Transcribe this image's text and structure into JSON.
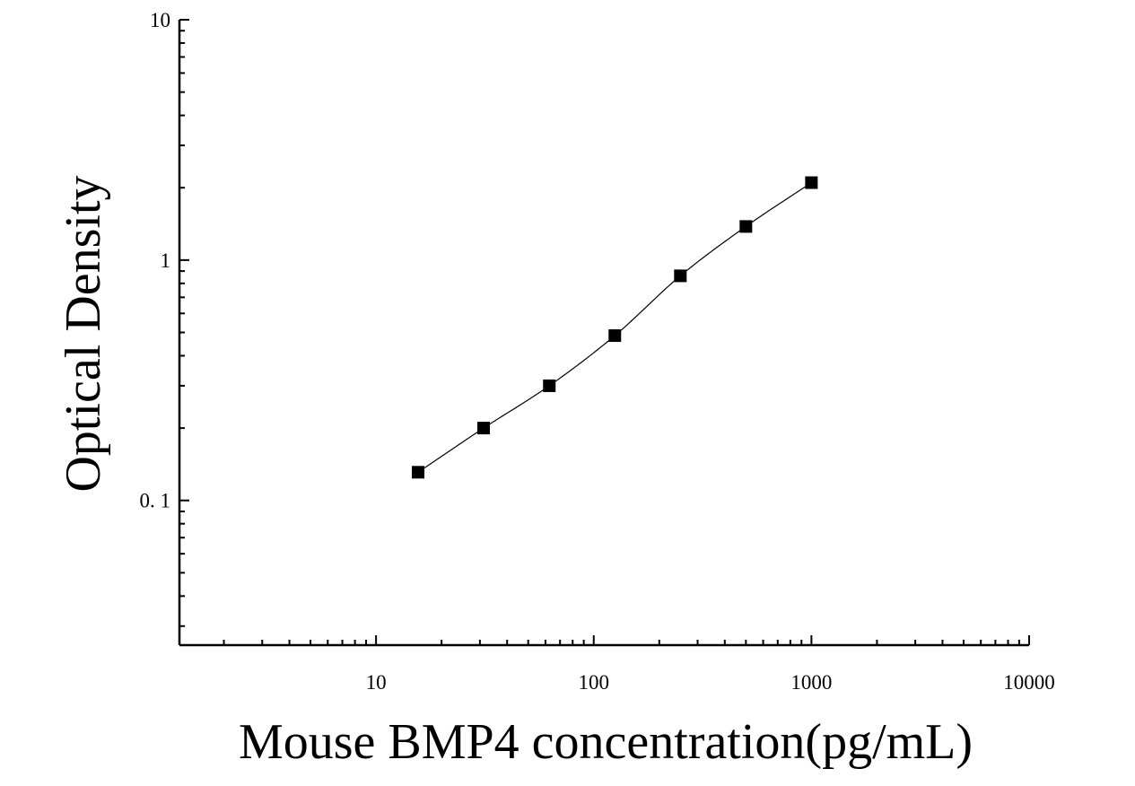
{
  "chart_data": {
    "type": "scatter",
    "title": "",
    "xlabel": "Mouse BMP4 concentration(pg/mL)",
    "ylabel": "Optical Density",
    "x_scale": "log",
    "y_scale": "log",
    "xlim": [
      1.25,
      10000
    ],
    "ylim": [
      0.025,
      10
    ],
    "x_ticks": [
      10,
      100,
      1000,
      10000
    ],
    "x_tick_labels": [
      "10",
      "100",
      "1000",
      "10000"
    ],
    "y_ticks": [
      0.1,
      1,
      10
    ],
    "y_tick_labels": [
      "0. 1",
      "1",
      "10"
    ],
    "grid": false,
    "legend": "none",
    "marker": "square",
    "marker_color": "#000000",
    "line_color": "#000000",
    "series": [
      {
        "x": [
          15.6,
          31.2,
          62.5,
          125,
          250,
          500,
          1000
        ],
        "y": [
          0.131,
          0.2,
          0.3,
          0.485,
          0.86,
          1.38,
          2.1
        ]
      }
    ]
  }
}
